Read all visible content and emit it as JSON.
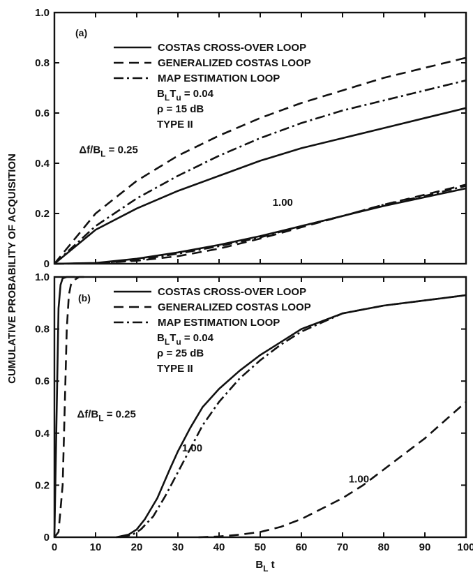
{
  "chart_data": {
    "type": "line",
    "ylabel": "CUMULATIVE PROBABILITY OF ACQUISITION",
    "xlabel": "B_L t",
    "xlim": [
      0,
      100
    ],
    "ylim": [
      0,
      1.0
    ],
    "xticks": [
      "0",
      "10",
      "20",
      "30",
      "40",
      "50",
      "60",
      "70",
      "80",
      "90",
      "100"
    ],
    "yticks": [
      "0",
      "0.2",
      "0.4",
      "0.6",
      "0.8",
      "1.0"
    ],
    "line_styles": {
      "solid": "",
      "dashed": "14 8",
      "dashdot": "14 5 3 5"
    },
    "panels": [
      {
        "label": "(a)",
        "legend": {
          "placement": "top-center",
          "entries": [
            {
              "name": "COSTAS CROSS-OVER LOOP",
              "style": "solid"
            },
            {
              "name": "GENERALIZED COSTAS LOOP",
              "style": "dashed"
            },
            {
              "name": "MAP ESTIMATION LOOP",
              "style": "dashdot"
            }
          ],
          "params": [
            {
              "id": "bltu",
              "main": "B",
              "sub": "L",
              "main2": "T",
              "sub2": "u",
              "rest": " = 0.04"
            },
            {
              "id": "rho",
              "text": "ρ = 15 dB"
            },
            {
              "id": "type",
              "text": "TYPE II"
            }
          ]
        },
        "annotations": [
          {
            "id": "df",
            "main": "Δf/B",
            "sub": "L",
            "rest": " = 0.25",
            "x": 6,
            "y": 0.44
          },
          {
            "id": "one",
            "text": "1.00",
            "x": 53,
            "y": 0.23
          }
        ],
        "series": [
          {
            "style": "solid",
            "x": [
              0,
              10,
              20,
              30,
              40,
              50,
              60,
              70,
              80,
              90,
              100
            ],
            "y": [
              0,
              0.135,
              0.22,
              0.29,
              0.35,
              0.41,
              0.46,
              0.5,
              0.54,
              0.58,
              0.62
            ]
          },
          {
            "style": "dashed",
            "x": [
              0,
              10,
              20,
              30,
              40,
              50,
              60,
              70,
              80,
              90,
              100
            ],
            "y": [
              0,
              0.2,
              0.33,
              0.43,
              0.51,
              0.58,
              0.64,
              0.69,
              0.74,
              0.78,
              0.82
            ]
          },
          {
            "style": "dashdot",
            "x": [
              0,
              10,
              20,
              30,
              40,
              50,
              60,
              70,
              80,
              90,
              100
            ],
            "y": [
              0,
              0.15,
              0.26,
              0.35,
              0.43,
              0.5,
              0.56,
              0.61,
              0.65,
              0.69,
              0.73
            ]
          },
          {
            "style": "solid",
            "x": [
              0,
              10,
              20,
              30,
              40,
              50,
              60,
              70,
              80,
              90,
              100
            ],
            "y": [
              0,
              0.003,
              0.02,
              0.045,
              0.075,
              0.11,
              0.15,
              0.19,
              0.23,
              0.265,
              0.3
            ]
          },
          {
            "style": "dashed",
            "x": [
              0,
              10,
              20,
              30,
              40,
              50,
              60,
              70,
              80,
              90,
              100
            ],
            "y": [
              0,
              0.002,
              0.012,
              0.03,
              0.06,
              0.1,
              0.145,
              0.19,
              0.235,
              0.275,
              0.315
            ]
          },
          {
            "style": "dashdot",
            "x": [
              0,
              10,
              20,
              30,
              40,
              50,
              60,
              70,
              80,
              90,
              100
            ],
            "y": [
              0,
              0.002,
              0.015,
              0.04,
              0.07,
              0.105,
              0.15,
              0.19,
              0.235,
              0.27,
              0.31
            ]
          }
        ]
      },
      {
        "label": "(b)",
        "legend": {
          "placement": "top-center",
          "entries": [
            {
              "name": "COSTAS CROSS-OVER LOOP",
              "style": "solid"
            },
            {
              "name": "GENERALIZED COSTAS LOOP",
              "style": "dashed"
            },
            {
              "name": "MAP ESTIMATION LOOP",
              "style": "dashdot"
            }
          ],
          "params": [
            {
              "id": "bltu",
              "main": "B",
              "sub": "L",
              "main2": "T",
              "sub2": "u",
              "rest": " = 0.04"
            },
            {
              "id": "rho",
              "text": "ρ = 25 dB"
            },
            {
              "id": "type",
              "text": "TYPE II"
            }
          ]
        },
        "annotations": [
          {
            "id": "df",
            "main": "Δf/B",
            "sub": "L",
            "rest": " = 0.25",
            "x": 5.5,
            "y": 0.46
          },
          {
            "id": "one-a",
            "text": "1.00",
            "x": 31,
            "y": 0.33
          },
          {
            "id": "one-b",
            "text": "1.00",
            "x": 71.5,
            "y": 0.21
          }
        ],
        "series": [
          {
            "style": "solid",
            "x": [
              0,
              0.5,
              1,
              1.5,
              2,
              3,
              4,
              5
            ],
            "y": [
              0,
              0.45,
              0.88,
              0.97,
              0.995,
              1.0,
              1.0,
              1.0
            ]
          },
          {
            "style": "dashed",
            "x": [
              0,
              1,
              2,
              2.5,
              3,
              3.5,
              4,
              5,
              6,
              8
            ],
            "y": [
              0,
              0.02,
              0.2,
              0.5,
              0.8,
              0.93,
              0.97,
              0.99,
              1.0,
              1.0
            ]
          },
          {
            "style": "solid",
            "x": [
              15,
              18,
              20,
              22,
              25,
              28,
              30,
              33,
              36,
              40,
              45,
              50,
              55,
              60,
              70,
              80,
              90,
              100
            ],
            "y": [
              0,
              0.01,
              0.03,
              0.07,
              0.15,
              0.26,
              0.33,
              0.42,
              0.5,
              0.57,
              0.64,
              0.7,
              0.75,
              0.8,
              0.86,
              0.89,
              0.91,
              0.93
            ]
          },
          {
            "style": "dashdot",
            "x": [
              16,
              19,
              21,
              24,
              27,
              30,
              33,
              36,
              40,
              45,
              50,
              55,
              60,
              70,
              80,
              90,
              100
            ],
            "y": [
              0,
              0.01,
              0.03,
              0.08,
              0.16,
              0.25,
              0.34,
              0.43,
              0.52,
              0.61,
              0.68,
              0.74,
              0.79,
              0.86,
              0.89,
              0.91,
              0.93
            ]
          },
          {
            "style": "dashed",
            "x": [
              35,
              40,
              45,
              50,
              55,
              60,
              65,
              70,
              75,
              80,
              85,
              90,
              95,
              100
            ],
            "y": [
              0,
              0.003,
              0.01,
              0.02,
              0.04,
              0.07,
              0.11,
              0.15,
              0.2,
              0.26,
              0.32,
              0.38,
              0.45,
              0.52
            ]
          }
        ]
      }
    ]
  }
}
